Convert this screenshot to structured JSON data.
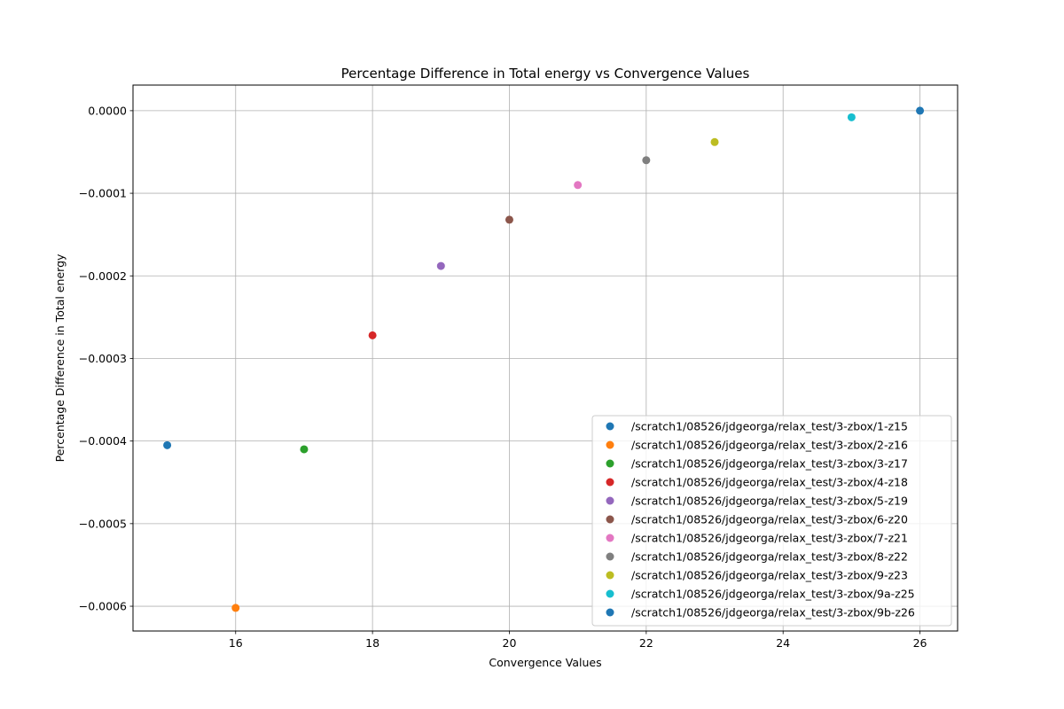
{
  "chart_data": {
    "type": "scatter",
    "title": "Percentage Difference in Total energy vs Convergence Values",
    "xlabel": "Convergence Values",
    "ylabel": "Percentage Difference in Total energy",
    "xlim": [
      14.5,
      26.55
    ],
    "ylim": [
      -0.00063,
      3.1e-05
    ],
    "xticks": [
      16,
      18,
      20,
      22,
      24,
      26
    ],
    "xtick_labels": [
      "16",
      "18",
      "20",
      "22",
      "24",
      "26"
    ],
    "yticks": [
      0,
      -0.0001,
      -0.0002,
      -0.0003,
      -0.0004,
      -0.0005,
      -0.0006
    ],
    "ytick_labels": [
      "0.0000",
      "−0.0001",
      "−0.0002",
      "−0.0003",
      "−0.0004",
      "−0.0005",
      "−0.0006"
    ],
    "grid": true,
    "legend_position": "lower-right",
    "series": [
      {
        "name": "/scratch1/08526/jdgeorga/relax_test/3-zbox/1-z15",
        "color": "#1f77b4",
        "x": [
          15
        ],
        "y": [
          -0.000405
        ]
      },
      {
        "name": "/scratch1/08526/jdgeorga/relax_test/3-zbox/2-z16",
        "color": "#ff7f0e",
        "x": [
          16
        ],
        "y": [
          -0.000602
        ]
      },
      {
        "name": "/scratch1/08526/jdgeorga/relax_test/3-zbox/3-z17",
        "color": "#2ca02c",
        "x": [
          17
        ],
        "y": [
          -0.00041
        ]
      },
      {
        "name": "/scratch1/08526/jdgeorga/relax_test/3-zbox/4-z18",
        "color": "#d62728",
        "x": [
          18
        ],
        "y": [
          -0.000272
        ]
      },
      {
        "name": "/scratch1/08526/jdgeorga/relax_test/3-zbox/5-z19",
        "color": "#9467bd",
        "x": [
          19
        ],
        "y": [
          -0.000188
        ]
      },
      {
        "name": "/scratch1/08526/jdgeorga/relax_test/3-zbox/6-z20",
        "color": "#8c564b",
        "x": [
          20
        ],
        "y": [
          -0.000132
        ]
      },
      {
        "name": "/scratch1/08526/jdgeorga/relax_test/3-zbox/7-z21",
        "color": "#e377c2",
        "x": [
          21
        ],
        "y": [
          -9e-05
        ]
      },
      {
        "name": "/scratch1/08526/jdgeorga/relax_test/3-zbox/8-z22",
        "color": "#7f7f7f",
        "x": [
          22
        ],
        "y": [
          -6e-05
        ]
      },
      {
        "name": "/scratch1/08526/jdgeorga/relax_test/3-zbox/9-z23",
        "color": "#bcbd22",
        "x": [
          23
        ],
        "y": [
          -3.8e-05
        ]
      },
      {
        "name": "/scratch1/08526/jdgeorga/relax_test/3-zbox/9a-z25",
        "color": "#17becf",
        "x": [
          25
        ],
        "y": [
          -8e-06
        ]
      },
      {
        "name": "/scratch1/08526/jdgeorga/relax_test/3-zbox/9b-z26",
        "color": "#1f77b4",
        "x": [
          26
        ],
        "y": [
          0
        ]
      }
    ]
  }
}
